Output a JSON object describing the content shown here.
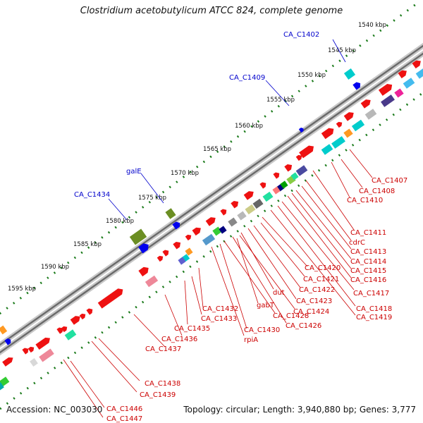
{
  "title": "Clostridium acetobutylicum ATCC 824, complete genome",
  "footer": {
    "accession": "Accession: NC_003030",
    "summary": "Topology: circular; Length: 3,940,880 bp; Genes: 3,777"
  },
  "colors": {
    "forward_gene": "#ee1111",
    "label_red": "#cc0000",
    "label_blue": "#0000cc",
    "ruler_dots": "#1a7a1a",
    "backbone": "#777777"
  },
  "scale_ticks": [
    "1540 kbp",
    "1545 kbp",
    "1550 kbp",
    "1555 kbp",
    "1560 kbp",
    "1565 kbp",
    "1570 kbp",
    "1575 kbp",
    "1580 kbp",
    "1585 kbp",
    "1590 kbp",
    "1595 kbp"
  ],
  "outer_labels": [
    "CA_C1402",
    "CA_C1409",
    "galE",
    "CA_C1434"
  ],
  "inner_labels": [
    "CA_C1407",
    "CA_C1408",
    "CA_C1410",
    "CA_C1411",
    "cdrC",
    "CA_C1413",
    "CA_C1414",
    "CA_C1415",
    "CA_C1416",
    "CA_C1417",
    "CA_C1418",
    "CA_C1419",
    "CA_C1420",
    "CA_C1421",
    "CA_C1422",
    "CA_C1423",
    "CA_C1424",
    "dut",
    "gabT",
    "CA_C1428",
    "CA_C1426",
    "CA_C1430",
    "rpiA",
    "CA_C1432",
    "CA_C1433",
    "CA_C1435",
    "CA_C1436",
    "CA_C1437",
    "CA_C1438",
    "CA_C1439",
    "CA_C1446",
    "CA_C1447"
  ]
}
